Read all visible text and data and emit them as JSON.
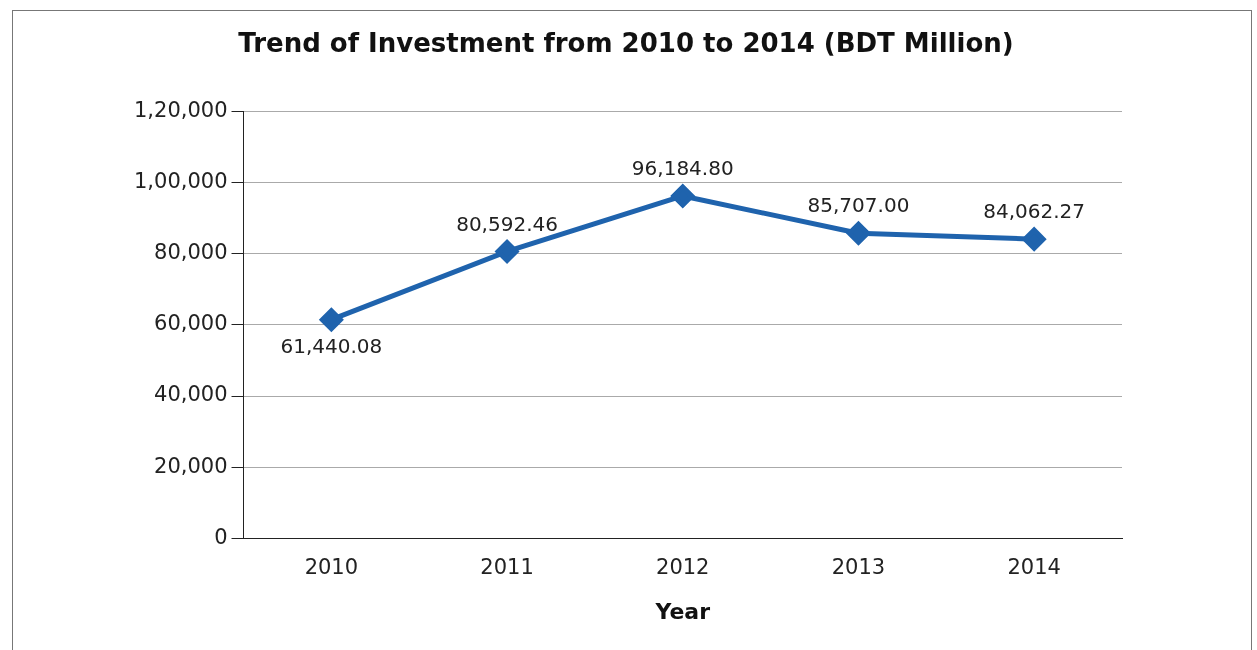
{
  "chart_data": {
    "type": "line",
    "title": "Trend of Investment from 2010 to 2014 (BDT Million)",
    "xlabel": "Year",
    "categories": [
      "2010",
      "2011",
      "2012",
      "2013",
      "2014"
    ],
    "series": [
      {
        "color": "#1f63ad",
        "values": [
          61440.08,
          80592.46,
          96184.8,
          85707.0,
          84062.27
        ],
        "value_labels": [
          "61,440.08",
          "80,592.46",
          "96,184.80",
          "85,707.00",
          "84,062.27"
        ]
      }
    ],
    "ylim": [
      0,
      120000
    ],
    "yticks": [
      0,
      {
        "value": 20000,
        "label": "20,000"
      },
      {
        "value": 40000,
        "label": "40,000"
      },
      {
        "value": 60000,
        "label": "60,000"
      },
      {
        "value": 80000,
        "label": "80,000"
      },
      {
        "value": 100000,
        "label": "1,00,000"
      },
      {
        "value": 120000,
        "label": "1,20,000"
      }
    ],
    "grid": "y",
    "legend": false,
    "marker": "diamond",
    "line_style": "solid"
  }
}
